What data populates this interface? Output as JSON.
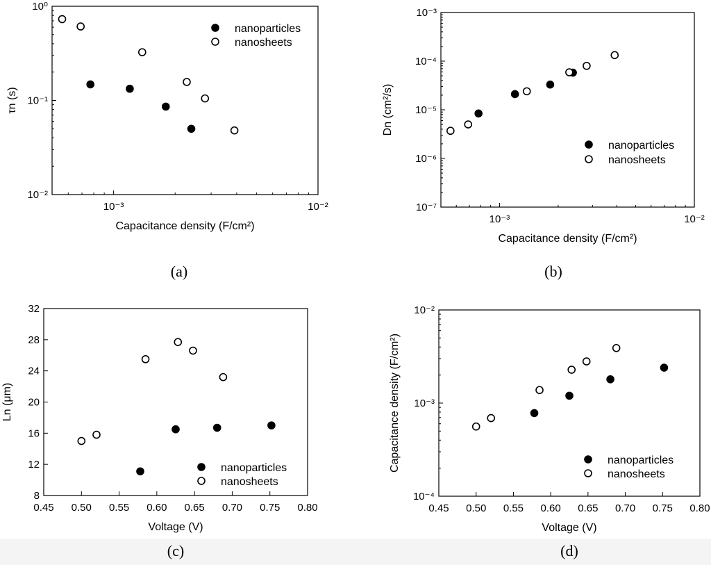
{
  "chart_data": [
    {
      "panel": "a",
      "caption": "(a)",
      "type": "scatter",
      "x_scale": "log",
      "y_scale": "log",
      "xlim": [
        0.0005,
        0.01
      ],
      "ylim": [
        0.01,
        1
      ],
      "xlabel": "Capacitance density (F/cm²)",
      "ylabel": "τn (s)",
      "x_ticks": [
        {
          "value": 0.001,
          "label": "10⁻³"
        },
        {
          "value": 0.01,
          "label": "10⁻²"
        }
      ],
      "y_ticks": [
        {
          "value": 0.01,
          "label": "10⁻²"
        },
        {
          "value": 0.1,
          "label": "10⁻¹"
        },
        {
          "value": 1,
          "label": "10⁰"
        }
      ],
      "legend_position": "top-right",
      "series": [
        {
          "name": "nanoparticles",
          "marker": "filled-circle",
          "points": [
            [
              0.00077,
              0.148
            ],
            [
              0.0012,
              0.133
            ],
            [
              0.0018,
              0.086
            ],
            [
              0.0024,
              0.05
            ]
          ]
        },
        {
          "name": "nanosheets",
          "marker": "open-circle",
          "points": [
            [
              0.00056,
              0.73
            ],
            [
              0.00069,
              0.61
            ],
            [
              0.00138,
              0.325
            ],
            [
              0.00228,
              0.157
            ],
            [
              0.0028,
              0.105
            ],
            [
              0.0039,
              0.048
            ]
          ]
        }
      ]
    },
    {
      "panel": "b",
      "caption": "(b)",
      "type": "scatter",
      "x_scale": "log",
      "y_scale": "log",
      "xlim": [
        0.0005,
        0.01
      ],
      "ylim": [
        1e-07,
        0.001
      ],
      "xlabel": "Capacitance density (F/cm²)",
      "ylabel": "Dn (cm²/s)",
      "x_ticks": [
        {
          "value": 0.001,
          "label": "10⁻³"
        },
        {
          "value": 0.01,
          "label": "10⁻²"
        }
      ],
      "y_ticks": [
        {
          "value": 1e-07,
          "label": "10⁻⁷"
        },
        {
          "value": 1e-06,
          "label": "10⁻⁶"
        },
        {
          "value": 1e-05,
          "label": "10⁻⁵"
        },
        {
          "value": 0.0001,
          "label": "10⁻⁴"
        },
        {
          "value": 0.001,
          "label": "10⁻³"
        }
      ],
      "legend_position": "bottom-right",
      "series": [
        {
          "name": "nanoparticles",
          "marker": "filled-circle",
          "points": [
            [
              0.00078,
              8.4e-06
            ],
            [
              0.0012,
              2.1e-05
            ],
            [
              0.00182,
              3.3e-05
            ],
            [
              0.00238,
              5.8e-05
            ]
          ]
        },
        {
          "name": "nanosheets",
          "marker": "open-circle",
          "points": [
            [
              0.00056,
              3.7e-06
            ],
            [
              0.00069,
              5e-06
            ],
            [
              0.00138,
              2.4e-05
            ],
            [
              0.00228,
              5.9e-05
            ],
            [
              0.0028,
              8e-05
            ],
            [
              0.0039,
              0.000133
            ]
          ]
        }
      ]
    },
    {
      "panel": "c",
      "caption": "(c)",
      "type": "scatter",
      "x_scale": "linear",
      "y_scale": "linear",
      "xlim": [
        0.45,
        0.8
      ],
      "ylim": [
        8,
        32
      ],
      "xlabel": "Voltage (V)",
      "ylabel": "Ln (μm)",
      "x_ticks": [
        {
          "value": 0.45,
          "label": "0.45"
        },
        {
          "value": 0.5,
          "label": "0.50"
        },
        {
          "value": 0.55,
          "label": "0.55"
        },
        {
          "value": 0.6,
          "label": "0.60"
        },
        {
          "value": 0.65,
          "label": "0.65"
        },
        {
          "value": 0.7,
          "label": "0.70"
        },
        {
          "value": 0.75,
          "label": "0.75"
        },
        {
          "value": 0.8,
          "label": "0.80"
        }
      ],
      "y_ticks": [
        {
          "value": 8,
          "label": "8"
        },
        {
          "value": 12,
          "label": "12"
        },
        {
          "value": 16,
          "label": "16"
        },
        {
          "value": 20,
          "label": "20"
        },
        {
          "value": 24,
          "label": "24"
        },
        {
          "value": 28,
          "label": "28"
        },
        {
          "value": 32,
          "label": "32"
        }
      ],
      "legend_position": "bottom-right",
      "series": [
        {
          "name": "nanoparticles",
          "marker": "filled-circle",
          "points": [
            [
              0.578,
              11.1
            ],
            [
              0.625,
              16.5
            ],
            [
              0.68,
              16.7
            ],
            [
              0.752,
              17.0
            ]
          ]
        },
        {
          "name": "nanosheets",
          "marker": "open-circle",
          "points": [
            [
              0.5,
              15.0
            ],
            [
              0.52,
              15.8
            ],
            [
              0.585,
              25.5
            ],
            [
              0.628,
              27.7
            ],
            [
              0.648,
              26.6
            ],
            [
              0.688,
              23.2
            ]
          ]
        }
      ]
    },
    {
      "panel": "d",
      "caption": "(d)",
      "type": "scatter",
      "x_scale": "linear",
      "y_scale": "log",
      "xlim": [
        0.45,
        0.8
      ],
      "ylim": [
        0.0001,
        0.01
      ],
      "xlabel": "Voltage (V)",
      "ylabel": "Capacitance density (F/cm²)",
      "x_ticks": [
        {
          "value": 0.45,
          "label": "0.45"
        },
        {
          "value": 0.5,
          "label": "0.50"
        },
        {
          "value": 0.55,
          "label": "0.55"
        },
        {
          "value": 0.6,
          "label": "0.60"
        },
        {
          "value": 0.65,
          "label": "0.65"
        },
        {
          "value": 0.7,
          "label": "0.70"
        },
        {
          "value": 0.75,
          "label": "0.75"
        },
        {
          "value": 0.8,
          "label": "0.80"
        }
      ],
      "y_ticks": [
        {
          "value": 0.0001,
          "label": "10⁻⁴"
        },
        {
          "value": 0.001,
          "label": "10⁻³"
        },
        {
          "value": 0.01,
          "label": "10⁻²"
        }
      ],
      "legend_position": "bottom-right",
      "series": [
        {
          "name": "nanoparticles",
          "marker": "filled-circle",
          "points": [
            [
              0.578,
              0.00078
            ],
            [
              0.625,
              0.0012
            ],
            [
              0.68,
              0.0018
            ],
            [
              0.752,
              0.0024
            ]
          ]
        },
        {
          "name": "nanosheets",
          "marker": "open-circle",
          "points": [
            [
              0.5,
              0.00056
            ],
            [
              0.52,
              0.00069
            ],
            [
              0.585,
              0.00138
            ],
            [
              0.628,
              0.00228
            ],
            [
              0.648,
              0.0028
            ],
            [
              0.688,
              0.0039
            ]
          ]
        }
      ]
    }
  ]
}
